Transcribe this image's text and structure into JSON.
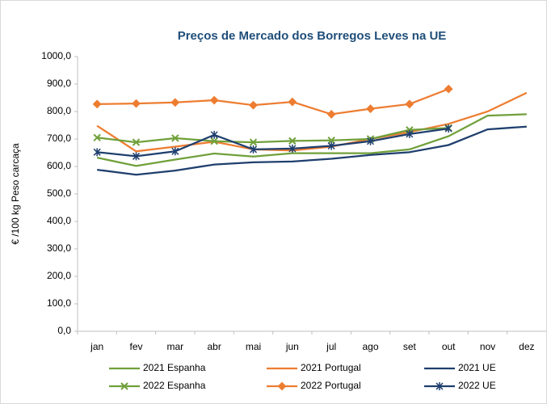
{
  "chart_data": {
    "type": "line",
    "title": "Preços de Mercado dos Borregos Leves na UE",
    "y_label": "€ /100 kg Peso carcaça",
    "categories": [
      "jan",
      "fev",
      "mar",
      "abr",
      "mai",
      "jun",
      "jul",
      "ago",
      "set",
      "out",
      "nov",
      "dez"
    ],
    "ylim": [
      0,
      1000
    ],
    "yticks": [
      {
        "value": 0,
        "label": "0,0"
      },
      {
        "value": 100,
        "label": "100,0"
      },
      {
        "value": 200,
        "label": "200,0"
      },
      {
        "value": 300,
        "label": "300,0"
      },
      {
        "value": 400,
        "label": "400,0"
      },
      {
        "value": 500,
        "label": "500,0"
      },
      {
        "value": 600,
        "label": "600,0"
      },
      {
        "value": 700,
        "label": "700,0"
      },
      {
        "value": 800,
        "label": "800,0"
      },
      {
        "value": 900,
        "label": "900,0"
      },
      {
        "value": 1000,
        "label": "1000,0"
      }
    ],
    "grid": false,
    "legend": "bottom",
    "series": [
      {
        "name": "2021 Espanha",
        "color": "#70a03a",
        "marker": "none",
        "values": [
          632,
          602,
          625,
          647,
          636,
          648,
          648,
          648,
          662,
          710,
          785,
          790
        ]
      },
      {
        "name": "2021 Portugal",
        "color": "#ed7d31",
        "marker": "none",
        "values": [
          748,
          655,
          672,
          690,
          662,
          658,
          672,
          700,
          725,
          755,
          800,
          868
        ]
      },
      {
        "name": "2021 UE",
        "color": "#1f3f6e",
        "marker": "none",
        "values": [
          588,
          570,
          585,
          607,
          615,
          618,
          628,
          642,
          652,
          678,
          735,
          745
        ]
      },
      {
        "name": "2022 Espanha",
        "color": "#70a03a",
        "marker": "x",
        "values": [
          705,
          688,
          703,
          692,
          688,
          693,
          695,
          700,
          733,
          740,
          null,
          null
        ]
      },
      {
        "name": "2022 Portugal",
        "color": "#ed7d31",
        "marker": "diamond",
        "values": [
          827,
          829,
          833,
          841,
          823,
          835,
          790,
          810,
          827,
          882,
          null,
          null
        ]
      },
      {
        "name": "2022 UE",
        "color": "#1f3f6e",
        "marker": "star",
        "values": [
          652,
          637,
          655,
          715,
          662,
          665,
          675,
          692,
          718,
          738,
          null,
          null
        ]
      }
    ]
  }
}
